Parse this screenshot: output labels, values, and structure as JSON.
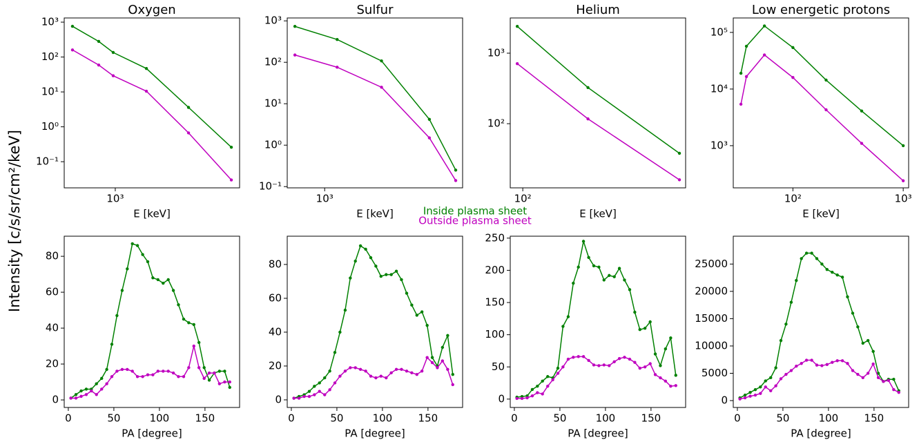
{
  "ylabel": "Intensity [c/s/sr/cm²/keV]",
  "legend": [
    "Inside plasma sheet",
    "Outside plasma sheet"
  ],
  "chart_data": [
    {
      "type": "line",
      "title": "Oxygen",
      "xlabel": "E [keV]",
      "xscale": "log",
      "yscale": "log",
      "x": [
        490,
        759,
        966,
        1680,
        3390,
        6920
      ],
      "series": [
        {
          "color": "#008000",
          "values": [
            760,
            280,
            135,
            47,
            3.6,
            0.26
          ]
        },
        {
          "color": "#bf00bf",
          "values": [
            160,
            59,
            29,
            10.5,
            0.67,
            0.03
          ]
        }
      ],
      "xlim": [
        427,
        7940
      ],
      "ylim": [
        0.0178,
        1318
      ],
      "xticks": [
        {
          "value": 1000,
          "label": "10³"
        }
      ],
      "yticks": [
        {
          "value": 1000,
          "label": "10³"
        },
        {
          "value": 100,
          "label": "10²"
        },
        {
          "value": 10,
          "label": "10¹"
        },
        {
          "value": 1,
          "label": "10⁰"
        },
        {
          "value": 0.1,
          "label": "10⁻¹"
        }
      ]
    },
    {
      "type": "line",
      "title": "Sulfur",
      "xlabel": "E [keV]",
      "xscale": "log",
      "yscale": "log",
      "x": [
        610,
        1230,
        2570,
        5690,
        8810
      ],
      "series": [
        {
          "color": "#008000",
          "values": [
            735,
            355,
            108,
            4.2,
            0.25
          ]
        },
        {
          "color": "#bf00bf",
          "values": [
            150,
            76,
            25,
            1.5,
            0.14
          ]
        }
      ],
      "xlim": [
        537,
        9880
      ],
      "ylim": [
        0.0933,
        1175
      ],
      "xticks": [
        {
          "value": 1000,
          "label": "10³"
        }
      ],
      "yticks": [
        {
          "value": 1000,
          "label": "10³"
        },
        {
          "value": 100,
          "label": "10²"
        },
        {
          "value": 10,
          "label": "10¹"
        },
        {
          "value": 1,
          "label": "10⁰"
        },
        {
          "value": 0.1,
          "label": "10⁻¹"
        }
      ]
    },
    {
      "type": "line",
      "title": "Helium",
      "xlabel": "E [keV]",
      "xscale": "log",
      "yscale": "log",
      "x": [
        93.2,
        230,
        740
      ],
      "series": [
        {
          "color": "#008000",
          "values": [
            2400,
            325,
            38
          ]
        },
        {
          "color": "#bf00bf",
          "values": [
            710,
            117,
            16
          ]
        }
      ],
      "xlim": [
        85.2,
        801
      ],
      "ylim": [
        12.3,
        3160
      ],
      "xticks": [
        {
          "value": 100,
          "label": "10²"
        }
      ],
      "yticks": [
        {
          "value": 1000,
          "label": "10³"
        },
        {
          "value": 100,
          "label": "10²"
        }
      ]
    },
    {
      "type": "line",
      "title": "Low energetic protons",
      "xlabel": "E [keV]",
      "xscale": "log",
      "yscale": "log",
      "x": [
        33.8,
        37.9,
        55.2,
        100,
        200,
        420,
        1000
      ],
      "series": [
        {
          "color": "#008000",
          "values": [
            19000,
            57000,
            130000,
            54000,
            14400,
            4100,
            1000
          ]
        },
        {
          "color": "#bf00bf",
          "values": [
            5400,
            16600,
            40000,
            16000,
            4300,
            1100,
            240
          ]
        }
      ],
      "xlim": [
        28.8,
        1120
      ],
      "ylim": [
        180,
        180000
      ],
      "xticks": [
        {
          "value": 100,
          "label": "10²"
        },
        {
          "value": 1000,
          "label": "10³"
        }
      ],
      "yticks": [
        {
          "value": 100000,
          "label": "10⁵"
        },
        {
          "value": 10000,
          "label": "10⁴"
        },
        {
          "value": 1000,
          "label": "10³"
        }
      ]
    },
    {
      "type": "line",
      "xlabel": "PA [degree]",
      "x": [
        2.8,
        8.4,
        14.1,
        19.7,
        25.3,
        30.9,
        36.6,
        42.2,
        47.8,
        53.4,
        59.1,
        64.7,
        70.3,
        75.9,
        81.6,
        87.2,
        92.8,
        98.4,
        104.1,
        109.7,
        115.3,
        120.9,
        126.6,
        132.2,
        137.8,
        143.4,
        149.1,
        154.7,
        160.3,
        165.9,
        171.6,
        177.2
      ],
      "series": [
        {
          "color": "#008000",
          "values": [
            1,
            3,
            5,
            6,
            6,
            9,
            12,
            17,
            31,
            47,
            61,
            73,
            87,
            86,
            81,
            77,
            68,
            67,
            65,
            67,
            61,
            53,
            45,
            43,
            42,
            32,
            18,
            11,
            15,
            16,
            16,
            7
          ]
        },
        {
          "color": "#bf00bf",
          "values": [
            1,
            1,
            2,
            3,
            5,
            3,
            6,
            9,
            13,
            16,
            17,
            17,
            16,
            13,
            13,
            14,
            14,
            16,
            16,
            16,
            15,
            13,
            13,
            18,
            30,
            18,
            12,
            15,
            15,
            9,
            10,
            10
          ]
        }
      ],
      "xlim": [
        -4.5,
        188
      ],
      "ylim": [
        -4.2,
        91.2
      ],
      "xticks": [
        0,
        50,
        100,
        150
      ],
      "yticks": [
        0,
        20,
        40,
        60,
        80
      ]
    },
    {
      "type": "line",
      "xlabel": "PA [degree]",
      "x": [
        2.8,
        8.4,
        14.1,
        19.7,
        25.3,
        30.9,
        36.6,
        42.2,
        47.8,
        53.4,
        59.1,
        64.7,
        70.3,
        75.9,
        81.6,
        87.2,
        92.8,
        98.4,
        104.1,
        109.7,
        115.3,
        120.9,
        126.6,
        132.2,
        137.8,
        143.4,
        149.1,
        154.7,
        160.3,
        165.9,
        171.6,
        177.2
      ],
      "series": [
        {
          "color": "#008000",
          "values": [
            1,
            2,
            3,
            5,
            8,
            10,
            13,
            17,
            28,
            40,
            53,
            72,
            82,
            91,
            89,
            84,
            79,
            73,
            74,
            74,
            76,
            71,
            63,
            56,
            50,
            52,
            44,
            25,
            20,
            31,
            38,
            15
          ]
        },
        {
          "color": "#bf00bf",
          "values": [
            1,
            1,
            2,
            2,
            3,
            5,
            3,
            6,
            10,
            14,
            17,
            19,
            19,
            18,
            17,
            14,
            13,
            14,
            13,
            16,
            18,
            18,
            17,
            16,
            15,
            17,
            25,
            22,
            19,
            23,
            18,
            9
          ]
        }
      ],
      "xlim": [
        -4.5,
        188
      ],
      "ylim": [
        -4.5,
        96.7
      ],
      "xticks": [
        0,
        50,
        100,
        150
      ],
      "yticks": [
        0,
        20,
        40,
        60,
        80
      ]
    },
    {
      "type": "line",
      "xlabel": "PA [degree]",
      "x": [
        2.8,
        8.4,
        14.1,
        19.7,
        25.3,
        30.9,
        36.6,
        42.2,
        47.8,
        53.4,
        59.1,
        64.7,
        70.3,
        75.9,
        81.6,
        87.2,
        92.8,
        98.4,
        104.1,
        109.7,
        115.3,
        120.9,
        126.6,
        132.2,
        137.8,
        143.4,
        149.1,
        154.7,
        160.3,
        165.9,
        171.6,
        177.2
      ],
      "series": [
        {
          "color": "#008000",
          "values": [
            3,
            4,
            5,
            15,
            20,
            28,
            35,
            33,
            48,
            113,
            128,
            180,
            205,
            245,
            220,
            207,
            205,
            185,
            192,
            190,
            203,
            185,
            170,
            135,
            108,
            110,
            120,
            70,
            52,
            78,
            95,
            37
          ]
        },
        {
          "color": "#bf00bf",
          "values": [
            1,
            1,
            2,
            5,
            10,
            8,
            20,
            30,
            40,
            50,
            62,
            65,
            66,
            66,
            60,
            53,
            52,
            53,
            52,
            58,
            63,
            65,
            62,
            57,
            48,
            50,
            55,
            38,
            33,
            28,
            20,
            21
          ]
        }
      ],
      "xlim": [
        -4.5,
        188
      ],
      "ylim": [
        -13,
        253
      ],
      "xticks": [
        0,
        50,
        100,
        150
      ],
      "yticks": [
        0,
        50,
        100,
        150,
        200,
        250
      ]
    },
    {
      "type": "line",
      "xlabel": "PA [degree]",
      "x": [
        2.8,
        8.4,
        14.1,
        19.7,
        25.3,
        30.9,
        36.6,
        42.2,
        47.8,
        53.4,
        59.1,
        64.7,
        70.3,
        75.9,
        81.6,
        87.2,
        92.8,
        98.4,
        104.1,
        109.7,
        115.3,
        120.9,
        126.6,
        132.2,
        137.8,
        143.4,
        149.1,
        154.7,
        160.3,
        165.9,
        171.6,
        177.2
      ],
      "series": [
        {
          "color": "#008000",
          "values": [
            500,
            1000,
            1500,
            2000,
            2500,
            3600,
            4200,
            6000,
            11000,
            14000,
            18000,
            22000,
            26000,
            27000,
            27000,
            26000,
            25000,
            24000,
            23500,
            23000,
            22600,
            19000,
            16000,
            13500,
            10500,
            11000,
            9000,
            5000,
            3500,
            3900,
            3900,
            1800
          ]
        },
        {
          "color": "#bf00bf",
          "values": [
            300,
            500,
            800,
            1000,
            1300,
            2500,
            1800,
            2700,
            4000,
            4800,
            5500,
            6300,
            6800,
            7400,
            7400,
            6500,
            6400,
            6600,
            7000,
            7300,
            7300,
            6800,
            5500,
            4800,
            4200,
            5000,
            6700,
            4200,
            3500,
            3700,
            2000,
            1500
          ]
        }
      ],
      "xlim": [
        -4.5,
        188
      ],
      "ylim": [
        -1260,
        30100
      ],
      "xticks": [
        0,
        50,
        100,
        150
      ],
      "yticks": [
        0,
        5000,
        10000,
        15000,
        20000,
        25000
      ]
    }
  ]
}
